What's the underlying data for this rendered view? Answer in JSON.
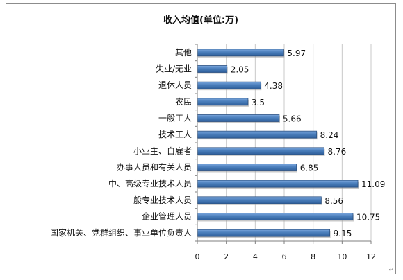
{
  "chart_data": {
    "type": "bar",
    "orientation": "horizontal",
    "title": "收入均值(单位:万)",
    "categories": [
      "其他",
      "失业/无业",
      "退休人员",
      "农民",
      "一般工人",
      "技术工人",
      "小业主、自雇者",
      "办事人员和有关人员",
      "中、高级专业技术人员",
      "一般专业技术人员",
      "企业管理人员",
      "国家机关、党群组织、事业单位负责人"
    ],
    "values": [
      5.97,
      2.05,
      4.38,
      3.5,
      5.66,
      8.24,
      8.76,
      6.85,
      11.09,
      8.56,
      10.75,
      9.15
    ],
    "value_labels": [
      "5.97",
      "2.05",
      "4.38",
      "3.5",
      "5.66",
      "8.24",
      "8.76",
      "6.85",
      "11.09",
      "8.56",
      "10.75",
      "9.15"
    ],
    "xlim": [
      0,
      12
    ],
    "x_ticks": [
      0,
      2,
      4,
      6,
      8,
      10,
      12
    ],
    "x_tick_labels": [
      "0",
      "2",
      "4",
      "6",
      "8",
      "10",
      "12"
    ],
    "grid": "vertical",
    "legend": "none",
    "bar_color": "#4a7ebb",
    "bar_border_color": "#2c5282",
    "grid_color": "#c8c8c8"
  },
  "corner_mark": "↵"
}
